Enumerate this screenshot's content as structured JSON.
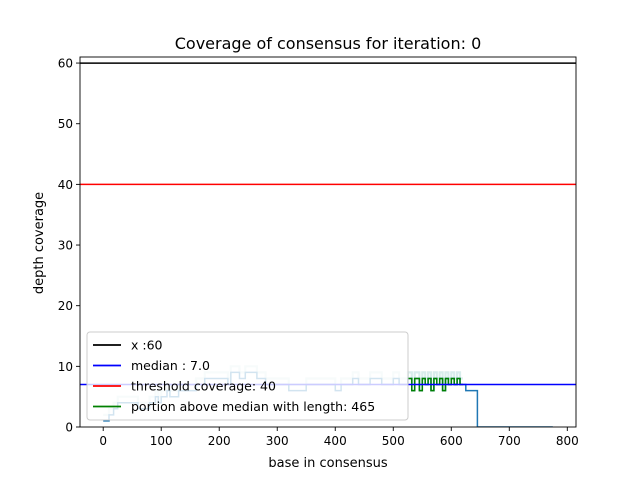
{
  "chart_data": {
    "type": "line",
    "title": "Coverage of consensus for iteration: 0",
    "xlabel": "base in consensus",
    "ylabel": "depth coverage",
    "xlim": [
      -40,
      815
    ],
    "ylim": [
      0,
      61
    ],
    "xticks": [
      0,
      100,
      200,
      300,
      400,
      500,
      600,
      700,
      800
    ],
    "yticks": [
      0,
      10,
      20,
      30,
      40,
      50,
      60
    ],
    "grid": false,
    "legend_position": "lower-left",
    "hlines": [
      {
        "name": "x :60",
        "y": 60,
        "color": "#000000"
      },
      {
        "name": "median : 7.0",
        "y": 7.0,
        "color": "#0000ff"
      },
      {
        "name": "threshold coverage: 40",
        "y": 40,
        "color": "#ff0000"
      }
    ],
    "series": [
      {
        "color": "#1f77b4",
        "x": [
          0,
          8,
          10,
          16,
          18,
          25,
          40,
          60,
          80,
          90,
          95,
          100,
          110,
          115,
          130,
          150,
          160,
          175,
          200,
          215,
          220,
          235,
          245,
          265,
          280,
          300,
          320,
          350,
          380,
          400,
          410,
          420,
          430,
          440,
          460,
          480,
          500,
          510,
          520,
          525,
          532,
          537,
          545,
          550,
          555,
          560,
          565,
          570,
          575,
          580,
          585,
          590,
          595,
          600,
          605,
          610,
          615,
          620,
          625,
          633,
          637,
          640,
          645,
          650,
          700,
          760,
          775
        ],
        "y": [
          1,
          1,
          2,
          2,
          3,
          4,
          4,
          3,
          4,
          5,
          4,
          5,
          6,
          5,
          6,
          6,
          7,
          8,
          8,
          7,
          9,
          8,
          9,
          8,
          7,
          7,
          6,
          7,
          7,
          6,
          7,
          7,
          8,
          7,
          8,
          7,
          8,
          7,
          7,
          8,
          6,
          8,
          6,
          8,
          7,
          8,
          6,
          8,
          7,
          8,
          6,
          8,
          7,
          8,
          7,
          8,
          7,
          7,
          6,
          6,
          6,
          6,
          0,
          0,
          0,
          0,
          0
        ]
      },
      {
        "color": "#008000",
        "x": [
          525,
          532,
          537,
          545,
          550,
          555,
          560,
          565,
          570,
          575,
          580,
          585,
          590,
          595,
          600,
          605,
          610,
          615,
          620
        ],
        "y": [
          8,
          6,
          8,
          6,
          8,
          7,
          8,
          6,
          8,
          7,
          8,
          6,
          8,
          7,
          8,
          7,
          8,
          7,
          7
        ]
      }
    ],
    "highlight_band": {
      "color": "#d8ecec",
      "x": [
        0,
        620
      ],
      "note_in_legend": "portion above median with length: 465"
    },
    "legend": [
      {
        "label": "x :60",
        "color": "#000000"
      },
      {
        "label": "median : 7.0",
        "color": "#0000ff"
      },
      {
        "label": "threshold coverage: 40",
        "color": "#ff0000"
      },
      {
        "label": "portion above median with length: 465",
        "color": "#008000"
      }
    ]
  }
}
